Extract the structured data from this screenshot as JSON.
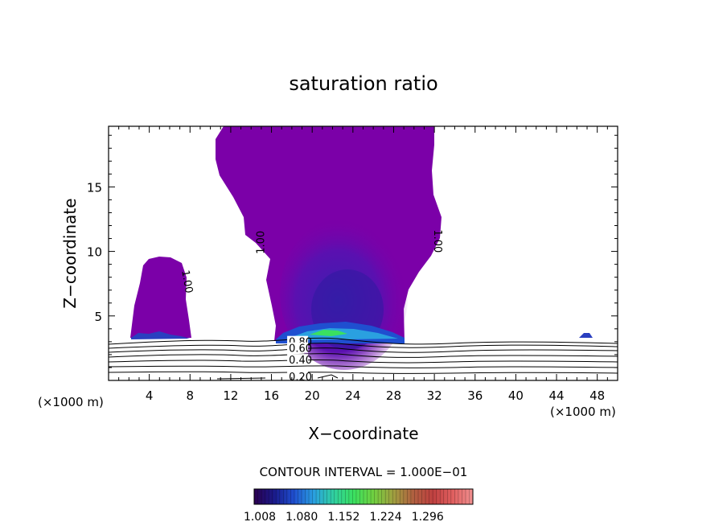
{
  "chart_data": {
    "type": "contour",
    "title": "saturation ratio",
    "xlabel": "X−coordinate",
    "ylabel": "Z−coordinate",
    "x_unit_left": "(×1000 m)",
    "x_unit_right": "(×1000 m)",
    "xlim": [
      0,
      50
    ],
    "ylim": [
      0,
      19.7
    ],
    "xticks": [
      4,
      8,
      12,
      16,
      20,
      24,
      28,
      32,
      36,
      40,
      44,
      48
    ],
    "yticks": [
      5,
      10,
      15
    ],
    "fill_color": "#7b00a8",
    "contour_labels": [
      {
        "text": "1.00",
        "x": 7.2,
        "y": 8.5,
        "rot": 80
      },
      {
        "text": "1.00",
        "x": 15.3,
        "y": 9.8,
        "rot": -90
      },
      {
        "text": "1.00",
        "x": 32.0,
        "y": 11.7,
        "rot": 90
      },
      {
        "text": "0.80",
        "x": 17.7,
        "y": 2.7,
        "rot": 0
      },
      {
        "text": "0.60",
        "x": 17.7,
        "y": 2.2,
        "rot": 0
      },
      {
        "text": "0.40",
        "x": 17.7,
        "y": 1.3,
        "rot": 0
      },
      {
        "text": "0.20",
        "x": 17.7,
        "y": 0.0,
        "rot": 0
      }
    ],
    "contour_interval": "CONTOUR INTERVAL = 1.000E−01",
    "colorbar": {
      "ticks": [
        "1.008",
        "1.080",
        "1.152",
        "1.224",
        "1.296"
      ],
      "colors": [
        "#2b0050",
        "#1a1a8a",
        "#1f4fd0",
        "#2aa0e0",
        "#30d0a0",
        "#3ae060",
        "#70d040",
        "#a0a040",
        "#b06040",
        "#c04040",
        "#e06060",
        "#f09090"
      ]
    }
  }
}
